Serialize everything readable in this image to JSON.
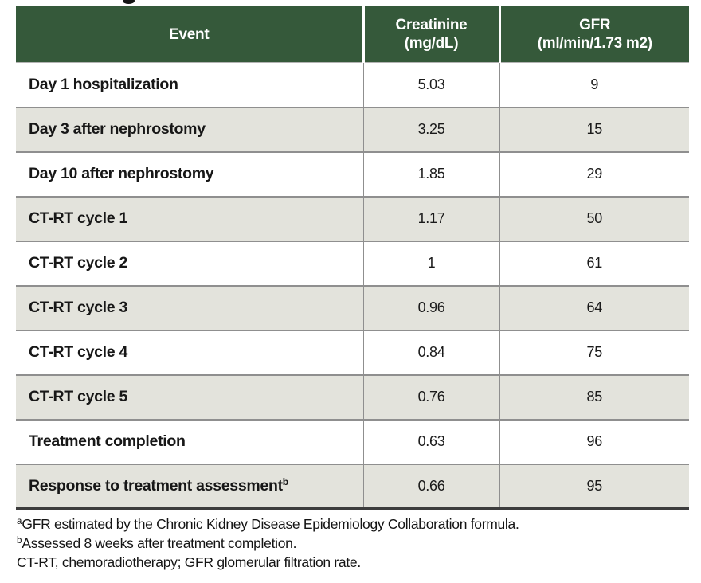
{
  "table": {
    "header": {
      "event": "Event",
      "creatinine_line1": "Creatinine",
      "creatinine_line2": "(mg/dL)",
      "gfr_line1": "GFR",
      "gfr_line2": "(ml/min/1.73 m2)"
    },
    "rows": [
      {
        "event": "Day 1 hospitalization",
        "sup": "",
        "creatinine": "5.03",
        "gfr": "9"
      },
      {
        "event": "Day 3 after nephrostomy",
        "sup": "",
        "creatinine": "3.25",
        "gfr": "15"
      },
      {
        "event": "Day 10 after nephrostomy",
        "sup": "",
        "creatinine": "1.85",
        "gfr": "29"
      },
      {
        "event": "CT-RT cycle 1",
        "sup": "",
        "creatinine": "1.17",
        "gfr": "50"
      },
      {
        "event": "CT-RT cycle 2",
        "sup": "",
        "creatinine": "1",
        "gfr": "61"
      },
      {
        "event": "CT-RT cycle 3",
        "sup": "",
        "creatinine": "0.96",
        "gfr": "64"
      },
      {
        "event": "CT-RT cycle 4",
        "sup": "",
        "creatinine": "0.84",
        "gfr": "75"
      },
      {
        "event": "CT-RT cycle 5",
        "sup": "",
        "creatinine": "0.76",
        "gfr": "85"
      },
      {
        "event": "Treatment completion",
        "sup": "",
        "creatinine": "0.63",
        "gfr": "96"
      },
      {
        "event": "Response to treatment assessment",
        "sup": "b",
        "creatinine": "0.66",
        "gfr": "95"
      }
    ]
  },
  "footnotes": [
    {
      "sup": "a",
      "text": "GFR estimated by the Chronic Kidney Disease Epidemiology Collaboration formula."
    },
    {
      "sup": "b",
      "text": "Assessed 8 weeks after treatment completion."
    },
    {
      "sup": "",
      "text": "CT-RT, chemoradiotherapy; GFR glomerular filtration rate."
    }
  ],
  "colors": {
    "header_bg": "#35593a",
    "header_text": "#ffffff",
    "row_alt_bg": "#e3e3dc",
    "row_separator": "#8f8f8f",
    "table_bottom_border": "#3d3d3d"
  },
  "chart_data": {
    "type": "table",
    "title": "",
    "columns": [
      "Event",
      "Creatinine (mg/dL)",
      "GFR (ml/min/1.73 m2)"
    ],
    "rows": [
      [
        "Day 1 hospitalization",
        5.03,
        9
      ],
      [
        "Day 3 after nephrostomy",
        3.25,
        15
      ],
      [
        "Day 10 after nephrostomy",
        1.85,
        29
      ],
      [
        "CT-RT cycle 1",
        1.17,
        50
      ],
      [
        "CT-RT cycle 2",
        1,
        61
      ],
      [
        "CT-RT cycle 3",
        0.96,
        64
      ],
      [
        "CT-RT cycle 4",
        0.84,
        75
      ],
      [
        "CT-RT cycle 5",
        0.76,
        85
      ],
      [
        "Treatment completion",
        0.63,
        96
      ],
      [
        "Response to treatment assessment (b)",
        0.66,
        95
      ]
    ]
  }
}
